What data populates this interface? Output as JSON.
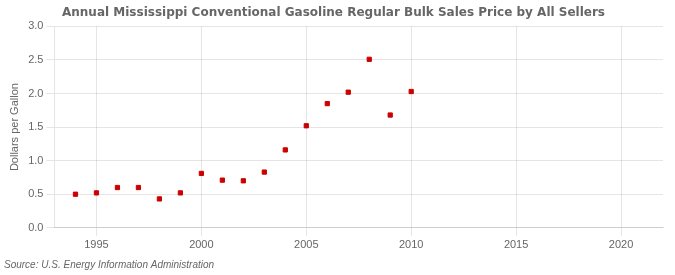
{
  "chart_data": {
    "type": "scatter",
    "title": "Annual Mississippi Conventional Gasoline Regular Bulk Sales Price by All Sellers",
    "ylabel": "Dollars per Gallon",
    "annotation": "Source: U.S. Energy Information Administration",
    "x": [
      1994,
      1995,
      1996,
      1997,
      1998,
      1999,
      2000,
      2001,
      2002,
      2003,
      2004,
      2005,
      2006,
      2007,
      2008,
      2009,
      2010
    ],
    "values": [
      0.5,
      0.52,
      0.6,
      0.6,
      0.43,
      0.52,
      0.81,
      0.71,
      0.7,
      0.83,
      1.16,
      1.52,
      1.85,
      2.02,
      2.51,
      1.68,
      2.03
    ],
    "color": "#cc0000",
    "marker": "square",
    "xlim": [
      1993,
      2022
    ],
    "xticks": [
      1995,
      2000,
      2005,
      2010,
      2015,
      2020
    ],
    "ylim": [
      0.0,
      3.0
    ],
    "yticks": [
      {
        "value": 0.0,
        "label": "0.0"
      },
      0.5,
      {
        "value": 1.0,
        "label": "1.0"
      },
      1.5,
      {
        "value": 2.0,
        "label": "2.0"
      },
      2.5,
      {
        "value": 3.0,
        "label": "3.0"
      }
    ],
    "grid": true
  }
}
